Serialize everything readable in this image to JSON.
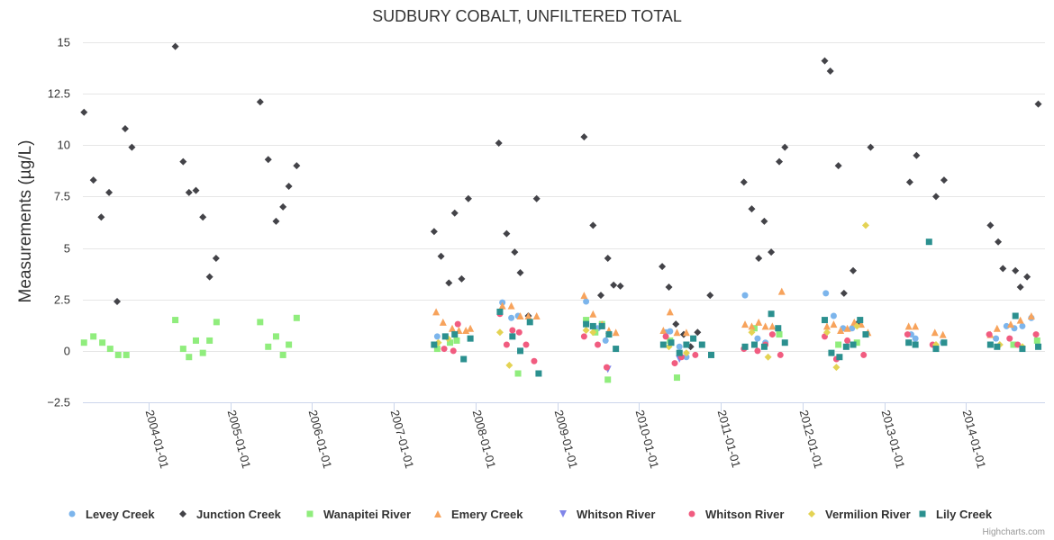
{
  "chart_data": {
    "type": "scatter",
    "title": "SUDBURY COBALT, UNFILTERED TOTAL",
    "xlabel": "",
    "ylabel": "Measurements (µg/L)",
    "ylim": [
      -2.5,
      15
    ],
    "xlim": [
      "2003-03-15",
      "2014-12-20"
    ],
    "yticks": [
      -2.5,
      0,
      2.5,
      5,
      7.5,
      10,
      12.5,
      15
    ],
    "ytick_labels": [
      "−2.5",
      "0",
      "2.5",
      "5",
      "7.5",
      "10",
      "12.5",
      "15"
    ],
    "xticks": [
      "2004-01-01",
      "2005-01-01",
      "2006-01-01",
      "2007-01-01",
      "2008-01-01",
      "2009-01-01",
      "2010-01-01",
      "2011-01-01",
      "2012-01-01",
      "2013-01-01",
      "2014-01-01"
    ],
    "grid": true,
    "legend_position": "bottom",
    "credits": "Highcharts.com",
    "series": [
      {
        "name": "Levey Creek",
        "color": "#7cb5ec",
        "marker": "circle",
        "points": [
          [
            "2007-07-15",
            0.7
          ],
          [
            "2008-05-01",
            2.35
          ],
          [
            "2008-06-10",
            1.6
          ],
          [
            "2008-07-10",
            1.7
          ],
          [
            "2009-05-10",
            2.4
          ],
          [
            "2009-07-01",
            1.1
          ],
          [
            "2009-08-05",
            0.5
          ],
          [
            "2010-05-01",
            0.9
          ],
          [
            "2010-05-20",
            0.95
          ],
          [
            "2010-07-01",
            0.2
          ],
          [
            "2010-08-01",
            -0.3
          ],
          [
            "2011-04-20",
            2.7
          ],
          [
            "2011-06-15",
            0.6
          ],
          [
            "2011-07-20",
            0.4
          ],
          [
            "2012-04-15",
            2.8
          ],
          [
            "2012-05-20",
            1.7
          ],
          [
            "2012-07-01",
            1.1
          ],
          [
            "2012-08-10",
            1.1
          ],
          [
            "2013-05-01",
            0.8
          ],
          [
            "2013-05-20",
            0.6
          ],
          [
            "2013-09-20",
            0.4
          ],
          [
            "2014-05-15",
            0.6
          ],
          [
            "2014-07-01",
            1.2
          ],
          [
            "2014-08-05",
            1.1
          ],
          [
            "2014-09-10",
            1.2
          ],
          [
            "2014-10-20",
            1.6
          ]
        ]
      },
      {
        "name": "Junction Creek",
        "color": "#434348",
        "marker": "diamond",
        "points": [
          [
            "2003-03-20",
            11.6
          ],
          [
            "2003-05-01",
            8.3
          ],
          [
            "2003-06-05",
            6.5
          ],
          [
            "2003-07-10",
            7.7
          ],
          [
            "2003-08-15",
            2.4
          ],
          [
            "2003-09-20",
            10.8
          ],
          [
            "2003-10-20",
            9.9
          ],
          [
            "2004-05-01",
            14.8
          ],
          [
            "2004-06-05",
            9.2
          ],
          [
            "2004-07-01",
            7.7
          ],
          [
            "2004-08-01",
            7.8
          ],
          [
            "2004-09-01",
            6.5
          ],
          [
            "2004-10-01",
            3.6
          ],
          [
            "2004-10-30",
            4.5
          ],
          [
            "2005-05-15",
            12.1
          ],
          [
            "2005-06-20",
            9.3
          ],
          [
            "2005-07-25",
            6.3
          ],
          [
            "2005-08-25",
            7.0
          ],
          [
            "2005-09-20",
            8.0
          ],
          [
            "2005-10-25",
            9.0
          ],
          [
            "2007-07-01",
            5.8
          ],
          [
            "2007-08-01",
            4.6
          ],
          [
            "2007-09-05",
            3.3
          ],
          [
            "2007-10-01",
            6.7
          ],
          [
            "2007-11-01",
            3.5
          ],
          [
            "2007-12-01",
            7.4
          ],
          [
            "2008-04-15",
            10.1
          ],
          [
            "2008-05-20",
            5.7
          ],
          [
            "2008-06-25",
            4.8
          ],
          [
            "2008-07-20",
            3.8
          ],
          [
            "2008-08-25",
            1.7
          ],
          [
            "2008-10-01",
            7.4
          ],
          [
            "2009-05-01",
            10.4
          ],
          [
            "2009-06-10",
            6.1
          ],
          [
            "2009-07-15",
            2.7
          ],
          [
            "2009-08-15",
            4.5
          ],
          [
            "2009-09-10",
            3.2
          ],
          [
            "2009-10-10",
            3.15
          ],
          [
            "2010-04-15",
            4.1
          ],
          [
            "2010-05-15",
            3.1
          ],
          [
            "2010-06-15",
            1.3
          ],
          [
            "2010-07-20",
            0.8
          ],
          [
            "2010-08-20",
            0.2
          ],
          [
            "2010-09-20",
            0.9
          ],
          [
            "2010-11-15",
            2.7
          ],
          [
            "2011-04-15",
            8.2
          ],
          [
            "2011-05-20",
            6.9
          ],
          [
            "2011-06-20",
            4.5
          ],
          [
            "2011-07-15",
            6.3
          ],
          [
            "2011-08-15",
            4.8
          ],
          [
            "2011-09-20",
            9.2
          ],
          [
            "2011-10-15",
            9.9
          ],
          [
            "2012-04-10",
            14.1
          ],
          [
            "2012-05-05",
            13.6
          ],
          [
            "2012-06-10",
            9.0
          ],
          [
            "2012-07-05",
            2.8
          ],
          [
            "2012-08-15",
            3.9
          ],
          [
            "2012-09-10",
            1.4
          ],
          [
            "2012-11-01",
            9.9
          ],
          [
            "2013-04-25",
            8.2
          ],
          [
            "2013-05-25",
            9.5
          ],
          [
            "2013-08-20",
            7.5
          ],
          [
            "2013-09-25",
            8.3
          ],
          [
            "2014-04-20",
            6.1
          ],
          [
            "2014-05-25",
            5.3
          ],
          [
            "2014-06-15",
            4.0
          ],
          [
            "2014-08-10",
            3.9
          ],
          [
            "2014-09-01",
            3.1
          ],
          [
            "2014-10-01",
            3.6
          ],
          [
            "2014-11-20",
            12.0
          ]
        ]
      },
      {
        "name": "Wanapitei River",
        "color": "#90ed7d",
        "marker": "square",
        "points": [
          [
            "2003-03-20",
            0.4
          ],
          [
            "2003-05-01",
            0.7
          ],
          [
            "2003-06-10",
            0.4
          ],
          [
            "2003-07-15",
            0.1
          ],
          [
            "2003-08-20",
            -0.2
          ],
          [
            "2003-09-25",
            -0.2
          ],
          [
            "2004-05-01",
            1.5
          ],
          [
            "2004-06-05",
            0.1
          ],
          [
            "2004-07-01",
            -0.3
          ],
          [
            "2004-08-01",
            0.5
          ],
          [
            "2004-09-01",
            -0.1
          ],
          [
            "2004-10-01",
            0.5
          ],
          [
            "2004-11-01",
            1.4
          ],
          [
            "2005-05-15",
            1.4
          ],
          [
            "2005-06-20",
            0.2
          ],
          [
            "2005-07-25",
            0.7
          ],
          [
            "2005-08-25",
            -0.2
          ],
          [
            "2005-09-20",
            0.3
          ],
          [
            "2005-10-25",
            1.6
          ],
          [
            "2007-07-15",
            0.1
          ],
          [
            "2007-09-10",
            0.4
          ],
          [
            "2007-10-10",
            0.5
          ],
          [
            "2008-07-10",
            -1.1
          ],
          [
            "2009-05-10",
            1.5
          ],
          [
            "2009-06-20",
            0.9
          ],
          [
            "2009-07-20",
            1.3
          ],
          [
            "2009-08-15",
            -1.4
          ],
          [
            "2010-05-20",
            0.5
          ],
          [
            "2010-06-20",
            -1.3
          ],
          [
            "2011-06-01",
            1.1
          ],
          [
            "2011-09-20",
            0.8
          ],
          [
            "2012-06-10",
            0.3
          ],
          [
            "2012-09-01",
            0.4
          ],
          [
            "2014-08-01",
            0.3
          ],
          [
            "2014-11-15",
            0.5
          ]
        ]
      },
      {
        "name": "Emery Creek",
        "color": "#f7a35c",
        "marker": "triangle",
        "points": [
          [
            "2007-07-10",
            1.9
          ],
          [
            "2007-08-10",
            1.4
          ],
          [
            "2007-09-20",
            1.1
          ],
          [
            "2007-10-20",
            1.0
          ],
          [
            "2007-11-20",
            1.0
          ],
          [
            "2007-12-10",
            1.1
          ],
          [
            "2008-05-01",
            2.2
          ],
          [
            "2008-06-10",
            2.2
          ],
          [
            "2008-07-20",
            1.7
          ],
          [
            "2008-08-25",
            1.7
          ],
          [
            "2008-10-01",
            1.7
          ],
          [
            "2009-05-01",
            2.7
          ],
          [
            "2009-06-10",
            1.8
          ],
          [
            "2009-07-20",
            1.3
          ],
          [
            "2009-08-20",
            1.0
          ],
          [
            "2009-09-20",
            0.9
          ],
          [
            "2010-04-20",
            1.0
          ],
          [
            "2010-05-20",
            1.9
          ],
          [
            "2010-06-20",
            0.9
          ],
          [
            "2010-08-01",
            0.9
          ],
          [
            "2011-04-20",
            1.3
          ],
          [
            "2011-05-20",
            1.2
          ],
          [
            "2011-06-20",
            1.4
          ],
          [
            "2011-07-20",
            1.2
          ],
          [
            "2011-08-20",
            1.2
          ],
          [
            "2011-10-01",
            2.9
          ],
          [
            "2012-04-20",
            1.2
          ],
          [
            "2012-05-20",
            1.3
          ],
          [
            "2012-06-20",
            1.0
          ],
          [
            "2012-07-20",
            1.1
          ],
          [
            "2012-08-20",
            1.4
          ],
          [
            "2012-09-20",
            1.3
          ],
          [
            "2012-10-20",
            0.9
          ],
          [
            "2013-04-20",
            1.2
          ],
          [
            "2013-05-20",
            1.2
          ],
          [
            "2013-08-15",
            0.9
          ],
          [
            "2013-09-20",
            0.8
          ],
          [
            "2014-04-20",
            0.8
          ],
          [
            "2014-05-20",
            1.1
          ],
          [
            "2014-07-20",
            1.3
          ],
          [
            "2014-09-01",
            1.5
          ],
          [
            "2014-10-20",
            1.7
          ]
        ]
      },
      {
        "name": "Whitson River",
        "color": "#8085e9",
        "marker": "triangle-down",
        "points": [
          [
            "2009-08-15",
            -0.9
          ],
          [
            "2010-07-01",
            -0.4
          ]
        ]
      },
      {
        "name": "Whitson River",
        "color": "#f15c80",
        "marker": "circle",
        "points": [
          [
            "2007-08-15",
            0.1
          ],
          [
            "2007-09-25",
            0.0
          ],
          [
            "2007-10-15",
            1.3
          ],
          [
            "2008-04-20",
            1.8
          ],
          [
            "2008-05-20",
            0.3
          ],
          [
            "2008-06-15",
            1.0
          ],
          [
            "2008-07-15",
            0.9
          ],
          [
            "2008-08-15",
            0.3
          ],
          [
            "2008-09-20",
            -0.5
          ],
          [
            "2009-05-01",
            0.7
          ],
          [
            "2009-07-01",
            0.3
          ],
          [
            "2009-08-10",
            -0.8
          ],
          [
            "2010-05-01",
            0.7
          ],
          [
            "2010-06-10",
            -0.6
          ],
          [
            "2010-07-10",
            -0.3
          ],
          [
            "2010-09-10",
            -0.2
          ],
          [
            "2011-04-15",
            0.1
          ],
          [
            "2011-06-15",
            0.0
          ],
          [
            "2011-07-20",
            0.3
          ],
          [
            "2011-08-20",
            0.8
          ],
          [
            "2011-09-25",
            -0.2
          ],
          [
            "2012-04-10",
            0.7
          ],
          [
            "2012-06-01",
            -0.4
          ],
          [
            "2012-07-20",
            0.5
          ],
          [
            "2012-10-01",
            -0.2
          ],
          [
            "2013-04-15",
            0.8
          ],
          [
            "2013-08-05",
            0.3
          ],
          [
            "2014-04-15",
            0.8
          ],
          [
            "2014-07-15",
            0.6
          ],
          [
            "2014-08-20",
            0.3
          ],
          [
            "2014-11-10",
            0.8
          ]
        ]
      },
      {
        "name": "Vermilion River",
        "color": "#e4d354",
        "marker": "diamond",
        "points": [
          [
            "2007-07-20",
            0.4
          ],
          [
            "2007-09-01",
            0.6
          ],
          [
            "2008-04-20",
            0.9
          ],
          [
            "2008-06-01",
            -0.7
          ],
          [
            "2009-05-10",
            1.0
          ],
          [
            "2009-06-10",
            0.9
          ],
          [
            "2010-05-15",
            0.2
          ],
          [
            "2010-08-01",
            -0.1
          ],
          [
            "2011-05-20",
            0.9
          ],
          [
            "2011-08-01",
            -0.3
          ],
          [
            "2012-04-20",
            0.9
          ],
          [
            "2012-06-01",
            -0.8
          ],
          [
            "2012-09-01",
            1.2
          ],
          [
            "2012-10-10",
            6.1
          ],
          [
            "2013-08-20",
            0.3
          ],
          [
            "2014-06-01",
            0.3
          ],
          [
            "2014-09-10",
            0.2
          ]
        ]
      },
      {
        "name": "Lily Creek",
        "color": "#2b908f",
        "marker": "square",
        "points": [
          [
            "2007-07-01",
            0.3
          ],
          [
            "2007-08-20",
            0.7
          ],
          [
            "2007-10-01",
            0.8
          ],
          [
            "2007-11-10",
            -0.4
          ],
          [
            "2007-12-10",
            0.6
          ],
          [
            "2008-04-20",
            1.9
          ],
          [
            "2008-06-15",
            0.7
          ],
          [
            "2008-07-20",
            0.0
          ],
          [
            "2008-09-01",
            1.4
          ],
          [
            "2008-10-10",
            -1.1
          ],
          [
            "2009-05-10",
            1.3
          ],
          [
            "2009-06-10",
            1.2
          ],
          [
            "2009-07-20",
            1.2
          ],
          [
            "2009-08-20",
            0.8
          ],
          [
            "2009-09-20",
            0.1
          ],
          [
            "2010-04-20",
            0.3
          ],
          [
            "2010-05-25",
            0.4
          ],
          [
            "2010-07-01",
            -0.1
          ],
          [
            "2010-08-01",
            0.3
          ],
          [
            "2010-09-01",
            0.6
          ],
          [
            "2010-10-10",
            0.3
          ],
          [
            "2010-11-20",
            -0.2
          ],
          [
            "2011-04-20",
            0.2
          ],
          [
            "2011-06-01",
            0.3
          ],
          [
            "2011-07-15",
            0.2
          ],
          [
            "2011-08-15",
            1.8
          ],
          [
            "2011-09-15",
            1.1
          ],
          [
            "2011-10-15",
            0.4
          ],
          [
            "2012-04-10",
            1.5
          ],
          [
            "2012-05-10",
            -0.1
          ],
          [
            "2012-06-15",
            -0.3
          ],
          [
            "2012-07-15",
            0.2
          ],
          [
            "2012-08-15",
            0.3
          ],
          [
            "2012-09-15",
            1.5
          ],
          [
            "2012-10-10",
            0.8
          ],
          [
            "2013-04-20",
            0.4
          ],
          [
            "2013-05-20",
            0.3
          ],
          [
            "2013-07-20",
            5.3
          ],
          [
            "2013-08-20",
            0.1
          ],
          [
            "2013-09-25",
            0.4
          ],
          [
            "2014-04-20",
            0.3
          ],
          [
            "2014-05-20",
            0.2
          ],
          [
            "2014-08-10",
            1.7
          ],
          [
            "2014-09-10",
            0.1
          ],
          [
            "2014-11-20",
            0.2
          ]
        ]
      }
    ]
  }
}
